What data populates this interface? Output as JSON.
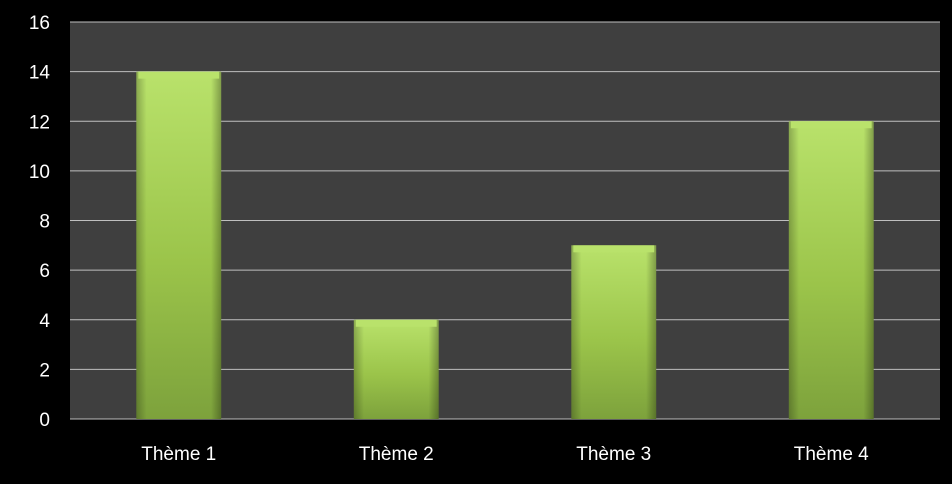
{
  "chart_data": {
    "type": "bar",
    "categories": [
      "Thème 1",
      "Thème 2",
      "Thème 3",
      "Thème 4"
    ],
    "values": [
      14,
      4,
      7,
      12
    ],
    "ylim": [
      0,
      16
    ],
    "yticks": [
      0,
      2,
      4,
      6,
      8,
      10,
      12,
      14,
      16
    ],
    "grid": true,
    "legend": "none",
    "colors": {
      "background": "#000000",
      "plot_area": "#3f3f3f",
      "gridline": "#bfbfbf",
      "text": "#ffffff",
      "bar_light": "#b9e26b",
      "bar_mid": "#9bc44a",
      "bar_dark": "#6f8f33"
    }
  }
}
